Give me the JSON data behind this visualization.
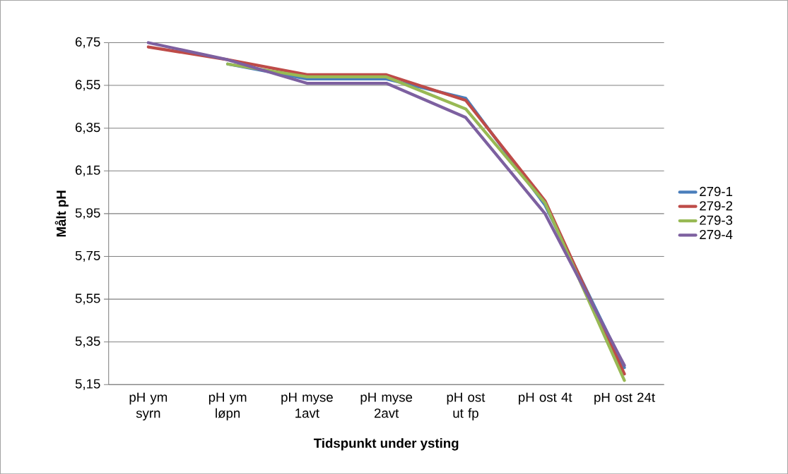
{
  "chart_data": {
    "type": "line",
    "xlabel": "Tidspunkt under ysting",
    "ylabel": "Målt pH",
    "categories": [
      "pH ym syrn",
      "pH ym løpn",
      "pH myse 1avt",
      "pH myse 2avt",
      "pH ost ut fp",
      "pH ost 4t",
      "pH ost 24t"
    ],
    "series": [
      {
        "name": "279-1",
        "color": "#4a7ebb",
        "values": [
          null,
          6.65,
          6.58,
          6.58,
          6.49,
          5.99,
          5.23
        ]
      },
      {
        "name": "279-2",
        "color": "#be4b48",
        "values": [
          6.73,
          6.67,
          6.6,
          6.6,
          6.48,
          6.01,
          5.2
        ]
      },
      {
        "name": "279-3",
        "color": "#98b954",
        "values": [
          null,
          6.65,
          6.59,
          6.59,
          6.44,
          6.0,
          5.17
        ]
      },
      {
        "name": "279-4",
        "color": "#7d60a0",
        "values": [
          6.75,
          6.67,
          6.56,
          6.56,
          6.4,
          5.95,
          5.24
        ]
      }
    ],
    "ylim": [
      5.15,
      6.75
    ],
    "yticks": [
      {
        "value": 5.15,
        "label": "5,15"
      },
      {
        "value": 5.35,
        "label": "5,35"
      },
      {
        "value": 5.55,
        "label": "5,55"
      },
      {
        "value": 5.75,
        "label": "5,75"
      },
      {
        "value": 5.95,
        "label": "5,95"
      },
      {
        "value": 6.15,
        "label": "6,15"
      },
      {
        "value": 6.35,
        "label": "6,35"
      },
      {
        "value": 6.55,
        "label": "6,55"
      },
      {
        "value": 6.75,
        "label": "6,75"
      }
    ],
    "grid": "y",
    "legend": "right",
    "marker": "none",
    "line_style": "solid"
  }
}
